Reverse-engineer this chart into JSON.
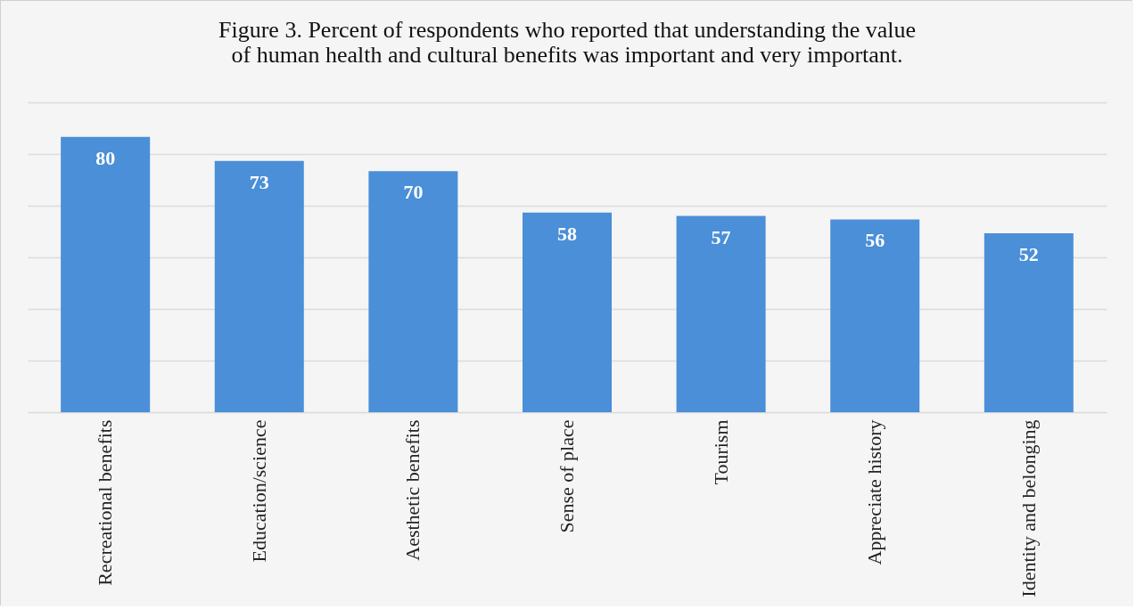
{
  "chart_data": {
    "type": "bar",
    "title": "Figure 3. Percent of respondents who reported that understanding the value of human health and cultural benefits was important and very important.",
    "categories": [
      "Recreational benefits",
      "Education/science",
      "Aesthetic benefits",
      "Sense of place",
      "Tourism",
      "Appreciate history",
      "Identity and belonging"
    ],
    "values": [
      80,
      73,
      70,
      58,
      57,
      56,
      52
    ],
    "color": "#4a8fd8",
    "ylim": [
      0,
      90
    ],
    "yticks": [
      {
        "value": 0,
        "label": null
      },
      {
        "value": 15,
        "label": null
      },
      {
        "value": 30,
        "label": null
      },
      {
        "value": 45,
        "label": null
      },
      {
        "value": 60,
        "label": null
      },
      {
        "value": 75,
        "label": null
      },
      {
        "value": 90,
        "label": null
      }
    ],
    "grid": "y",
    "data_labels": true,
    "tick_labels": "x"
  }
}
